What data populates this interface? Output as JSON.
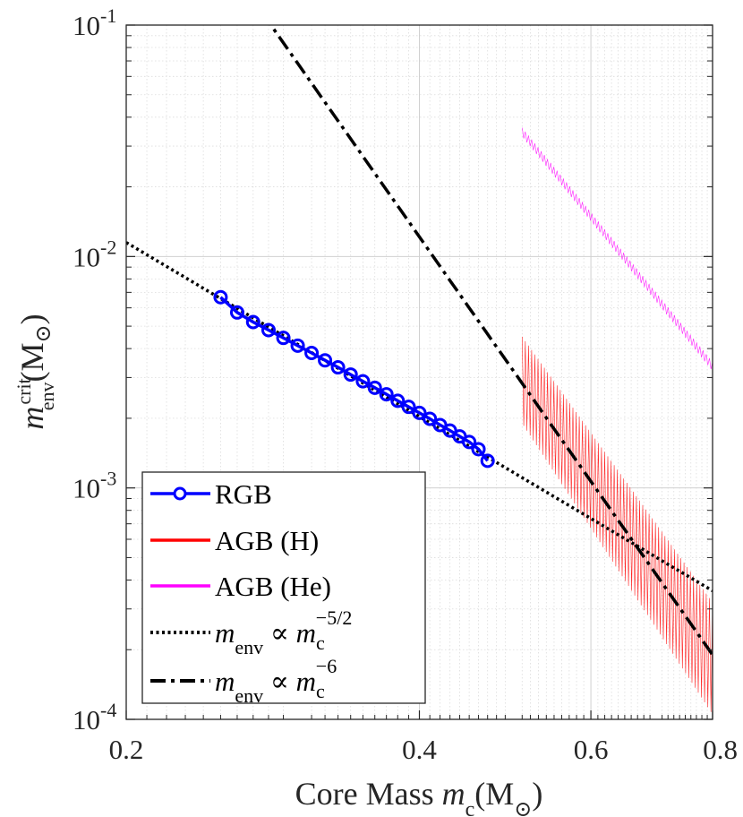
{
  "chart_data": {
    "type": "line",
    "x_scale": "log",
    "y_scale": "log",
    "xlim": [
      0.2,
      0.8
    ],
    "ylim": [
      0.0001,
      0.1
    ],
    "grid": true,
    "legend_position": "bottom-left",
    "xlabel": {
      "prefix": "Core Mass ",
      "sym": "m",
      "sub": "c",
      "unit": "(M",
      "sun": "⊙",
      "close": ")"
    },
    "ylabel": {
      "sym": "m",
      "sup": "crit",
      "sub": "env",
      "unit": "(M",
      "sun": "⊙",
      "close": ")"
    },
    "x_ticks": [
      {
        "value": 0.2,
        "label": "0.2"
      },
      {
        "value": 0.4,
        "label": "0.4"
      },
      {
        "value": 0.6,
        "label": "0.6"
      },
      {
        "value": 0.8,
        "label": "0.8"
      }
    ],
    "y_ticks": [
      {
        "value": 0.0001,
        "base": "10",
        "exp": "-4"
      },
      {
        "value": 0.001,
        "base": "10",
        "exp": "-3"
      },
      {
        "value": 0.01,
        "base": "10",
        "exp": "-2"
      },
      {
        "value": 0.1,
        "base": "10",
        "exp": "-1"
      }
    ],
    "series": [
      {
        "name": "RGB",
        "style": "line-circle",
        "color": "#0000ff",
        "x": [
          0.25,
          0.26,
          0.27,
          0.28,
          0.29,
          0.3,
          0.31,
          0.32,
          0.33,
          0.34,
          0.35,
          0.36,
          0.37,
          0.38,
          0.39,
          0.4,
          0.41,
          0.42,
          0.43,
          0.44,
          0.45,
          0.46,
          0.47
        ],
        "y": [
          0.00667,
          0.00573,
          0.00521,
          0.00481,
          0.00445,
          0.00412,
          0.00383,
          0.00356,
          0.00332,
          0.00309,
          0.00289,
          0.00271,
          0.00254,
          0.00238,
          0.00224,
          0.00211,
          0.00199,
          0.00187,
          0.00177,
          0.00167,
          0.00158,
          0.00147,
          0.00131
        ]
      },
      {
        "name": "AGB (H)",
        "style": "oscillating-line",
        "color": "#ff0000",
        "x_start": 0.51,
        "x_end": 0.8,
        "upper_start": 0.0045,
        "upper_end": 0.00032,
        "lower_start": 0.0019,
        "lower_end": 0.000105
      },
      {
        "name": "AGB (He)",
        "style": "oscillating-line",
        "color": "#ff00ff",
        "x_start": 0.51,
        "x_end": 0.8,
        "upper_start": 0.036,
        "upper_end": 0.0035,
        "lower_start": 0.033,
        "lower_end": 0.0032
      },
      {
        "name": "m_env ∝ m_c^-5/2",
        "style": "dotted",
        "color": "#000000",
        "power": -2.5,
        "ref_x": 0.2,
        "ref_y": 0.0115,
        "x_range": [
          0.2,
          0.8
        ]
      },
      {
        "name": "m_env ∝ m_c^-6",
        "style": "dashdot",
        "color": "#000000",
        "power": -6,
        "ref_x": 0.8,
        "ref_y": 0.00019,
        "x_range": [
          0.2,
          0.8
        ]
      }
    ],
    "legend": [
      {
        "label": "RGB",
        "style": "line-circle",
        "color": "#0000ff"
      },
      {
        "label": "AGB (H)",
        "style": "solid",
        "color": "#ff0000"
      },
      {
        "label": "AGB (He)",
        "style": "solid",
        "color": "#ff00ff"
      },
      {
        "math": {
          "lhs": "m",
          "lhs_sub": "env",
          "rel": " ∝ ",
          "rhs": "m",
          "rhs_sub": "c",
          "rhs_sup": "−5/2"
        },
        "style": "dotted",
        "color": "#000000"
      },
      {
        "math": {
          "lhs": "m",
          "lhs_sub": "env",
          "rel": " ∝ ",
          "rhs": "m",
          "rhs_sub": "c",
          "rhs_sup": "−6"
        },
        "style": "dashdot",
        "color": "#000000"
      }
    ]
  }
}
